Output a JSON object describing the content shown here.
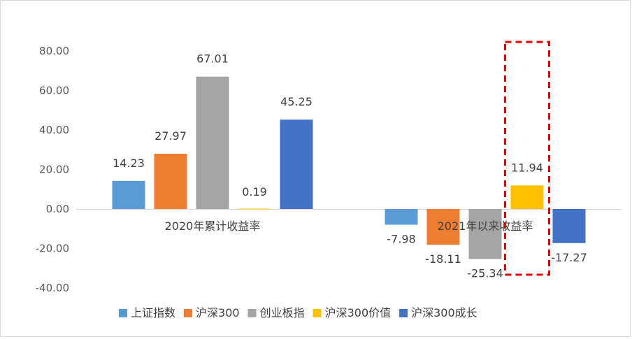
{
  "chart_data": {
    "type": "bar",
    "categories": [
      "2020年累计收益率",
      "2021年以来收益率"
    ],
    "series": [
      {
        "name": "上证指数",
        "color": "#5B9BD5",
        "values": [
          14.23,
          -7.98
        ],
        "labels": [
          "14.23",
          "-7.98"
        ]
      },
      {
        "name": "沪深300",
        "color": "#ED7D31",
        "values": [
          27.97,
          -18.11
        ],
        "labels": [
          "27.97",
          "-18.11"
        ]
      },
      {
        "name": "创业板指",
        "color": "#A5A5A5",
        "values": [
          67.01,
          -25.34
        ],
        "labels": [
          "67.01",
          "-25.34"
        ]
      },
      {
        "name": "沪深300价值",
        "color": "#FFC000",
        "values": [
          0.19,
          11.94
        ],
        "labels": [
          "0.19",
          "11.94"
        ]
      },
      {
        "name": "沪深300成长",
        "color": "#4472C4",
        "values": [
          45.25,
          -17.27
        ],
        "labels": [
          "45.25",
          "-17.27"
        ]
      }
    ],
    "ylim": [
      -40,
      80
    ],
    "yticks": [
      "-40.00",
      "-20.00",
      "0.00",
      "20.00",
      "40.00",
      "60.00",
      "80.00"
    ],
    "legend_position": "bottom",
    "highlight": {
      "category_index": 1,
      "series_index": 3,
      "style": "dashed",
      "color": "#E00000"
    }
  }
}
